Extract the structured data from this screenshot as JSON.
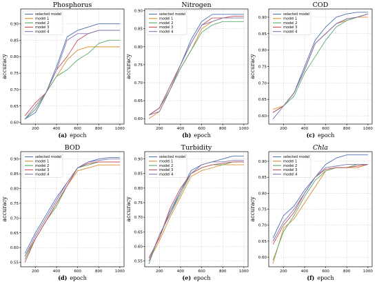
{
  "colors": {
    "selected model": "#4c72b0",
    "model 1": "#dd8a2b",
    "model 2": "#55a868",
    "model 3": "#c44e52",
    "model 4": "#8172b2"
  },
  "chart_data": [
    {
      "type": "line",
      "title": "Phosphorus",
      "title_italic": false,
      "caption_letter": "(a)",
      "xlabel": "epoch",
      "ylabel": "accuracy",
      "xlim": [
        60,
        1040
      ],
      "ylim": [
        0.595,
        0.945
      ],
      "xticks": [
        200,
        400,
        600,
        800,
        1000
      ],
      "yticks": [
        0.6,
        0.65,
        0.7,
        0.75,
        0.8,
        0.85,
        0.9
      ],
      "ytick_labels": [
        "0.60",
        "0.65",
        "0.70",
        "0.75",
        "0.80",
        "0.85",
        "0.90"
      ],
      "grid": true,
      "legend_position": "top-left",
      "x": [
        100,
        200,
        300,
        400,
        500,
        600,
        700,
        800,
        900,
        1000
      ],
      "series": [
        {
          "name": "selected model",
          "values": [
            0.61,
            0.63,
            0.69,
            0.77,
            0.86,
            0.88,
            0.89,
            0.9,
            0.9,
            0.9
          ]
        },
        {
          "name": "model 1",
          "values": [
            0.61,
            0.64,
            0.69,
            0.74,
            0.79,
            0.82,
            0.83,
            0.83,
            0.83,
            0.83
          ]
        },
        {
          "name": "model 2",
          "values": [
            0.61,
            0.64,
            0.69,
            0.74,
            0.76,
            0.79,
            0.81,
            0.84,
            0.85,
            0.85
          ]
        },
        {
          "name": "model 3",
          "values": [
            0.62,
            0.66,
            0.69,
            0.76,
            0.8,
            0.85,
            0.87,
            0.88,
            0.88,
            0.88
          ]
        },
        {
          "name": "model 4",
          "values": [
            0.61,
            0.65,
            0.69,
            0.76,
            0.85,
            0.87,
            0.87,
            0.88,
            0.88,
            0.88
          ]
        }
      ]
    },
    {
      "type": "line",
      "title": "Nitrogen",
      "title_italic": false,
      "caption_letter": "(b)",
      "xlabel": "epoch",
      "ylabel": "accuracy",
      "xlim": [
        60,
        1040
      ],
      "ylim": [
        0.585,
        0.905
      ],
      "xticks": [
        200,
        400,
        600,
        800,
        1000
      ],
      "yticks": [
        0.6,
        0.65,
        0.7,
        0.75,
        0.8,
        0.85,
        0.9
      ],
      "ytick_labels": [
        "0.60",
        "0.65",
        "0.70",
        "0.75",
        "0.80",
        "0.85",
        "0.90"
      ],
      "grid": true,
      "legend_position": "top-left",
      "x": [
        100,
        200,
        300,
        400,
        500,
        600,
        700,
        800,
        900,
        1000
      ],
      "series": [
        {
          "name": "selected model",
          "values": [
            0.61,
            0.63,
            0.69,
            0.75,
            0.82,
            0.87,
            0.89,
            0.89,
            0.89,
            0.89
          ]
        },
        {
          "name": "model 1",
          "values": [
            0.6,
            0.62,
            0.68,
            0.74,
            0.79,
            0.85,
            0.87,
            0.88,
            0.88,
            0.88
          ]
        },
        {
          "name": "model 2",
          "values": [
            0.61,
            0.63,
            0.68,
            0.74,
            0.79,
            0.84,
            0.86,
            0.87,
            0.87,
            0.87
          ]
        },
        {
          "name": "model 3",
          "values": [
            0.61,
            0.63,
            0.69,
            0.75,
            0.81,
            0.86,
            0.88,
            0.88,
            0.885,
            0.885
          ]
        },
        {
          "name": "model 4",
          "values": [
            0.61,
            0.62,
            0.68,
            0.75,
            0.81,
            0.86,
            0.87,
            0.88,
            0.88,
            0.88
          ]
        }
      ]
    },
    {
      "type": "line",
      "title": "COD",
      "title_italic": false,
      "caption_letter": "(c)",
      "xlabel": "epoch",
      "ylabel": "accuracy",
      "xlim": [
        60,
        1040
      ],
      "ylim": [
        0.575,
        0.925
      ],
      "xticks": [
        200,
        400,
        600,
        800,
        1000
      ],
      "yticks": [
        0.6,
        0.65,
        0.7,
        0.75,
        0.8,
        0.85,
        0.9
      ],
      "ytick_labels": [
        "0.60",
        "0.65",
        "0.70",
        "0.75",
        "0.80",
        "0.85",
        "0.90"
      ],
      "grid": true,
      "legend_position": "top-left",
      "x": [
        100,
        200,
        300,
        400,
        500,
        600,
        700,
        800,
        900,
        1000
      ],
      "series": [
        {
          "name": "selected model",
          "values": [
            0.61,
            0.63,
            0.67,
            0.75,
            0.83,
            0.87,
            0.9,
            0.91,
            0.915,
            0.915
          ]
        },
        {
          "name": "model 1",
          "values": [
            0.62,
            0.63,
            0.67,
            0.74,
            0.82,
            0.85,
            0.88,
            0.89,
            0.9,
            0.9
          ]
        },
        {
          "name": "model 2",
          "values": [
            0.61,
            0.63,
            0.66,
            0.73,
            0.78,
            0.83,
            0.87,
            0.89,
            0.9,
            0.91
          ]
        },
        {
          "name": "model 3",
          "values": [
            0.61,
            0.63,
            0.67,
            0.74,
            0.82,
            0.85,
            0.88,
            0.895,
            0.9,
            0.91
          ]
        },
        {
          "name": "model 4",
          "values": [
            0.59,
            0.63,
            0.67,
            0.74,
            0.82,
            0.85,
            0.88,
            0.895,
            0.9,
            0.91
          ]
        }
      ]
    },
    {
      "type": "line",
      "title": "BOD",
      "title_italic": false,
      "caption_letter": "(d)",
      "xlabel": "epoch",
      "ylabel": "accuracy",
      "xlim": [
        60,
        1040
      ],
      "ylim": [
        0.535,
        0.925
      ],
      "xticks": [
        200,
        400,
        600,
        800,
        1000
      ],
      "yticks": [
        0.55,
        0.6,
        0.65,
        0.7,
        0.75,
        0.8,
        0.85,
        0.9
      ],
      "ytick_labels": [
        "0.55",
        "0.60",
        "0.65",
        "0.70",
        "0.75",
        "0.80",
        "0.85",
        "0.90"
      ],
      "grid": true,
      "legend_position": "top-left",
      "x": [
        100,
        200,
        300,
        400,
        500,
        600,
        700,
        800,
        900,
        1000
      ],
      "series": [
        {
          "name": "selected model",
          "values": [
            0.58,
            0.65,
            0.71,
            0.77,
            0.82,
            0.87,
            0.89,
            0.9,
            0.905,
            0.905
          ]
        },
        {
          "name": "model 1",
          "values": [
            0.57,
            0.63,
            0.69,
            0.75,
            0.81,
            0.86,
            0.87,
            0.88,
            0.88,
            0.88
          ]
        },
        {
          "name": "model 2",
          "values": [
            0.56,
            0.63,
            0.69,
            0.74,
            0.81,
            0.87,
            0.88,
            0.89,
            0.89,
            0.89
          ]
        },
        {
          "name": "model 3",
          "values": [
            0.55,
            0.63,
            0.69,
            0.75,
            0.81,
            0.87,
            0.885,
            0.89,
            0.89,
            0.89
          ]
        },
        {
          "name": "model 4",
          "values": [
            0.57,
            0.64,
            0.7,
            0.76,
            0.82,
            0.87,
            0.89,
            0.895,
            0.9,
            0.9
          ]
        }
      ]
    },
    {
      "type": "line",
      "title": "Turbidity",
      "title_italic": false,
      "caption_letter": "(e)",
      "xlabel": "epoch",
      "ylabel": "accuracy",
      "xlim": [
        60,
        1040
      ],
      "ylim": [
        0.53,
        0.925
      ],
      "xticks": [
        200,
        400,
        600,
        800,
        1000
      ],
      "yticks": [
        0.55,
        0.6,
        0.65,
        0.7,
        0.75,
        0.8,
        0.85,
        0.9
      ],
      "ytick_labels": [
        "0.55",
        "0.60",
        "0.65",
        "0.70",
        "0.75",
        "0.80",
        "0.85",
        "0.90"
      ],
      "grid": true,
      "legend_position": "top-left",
      "x": [
        100,
        200,
        300,
        400,
        500,
        600,
        700,
        800,
        900,
        1000
      ],
      "series": [
        {
          "name": "selected model",
          "values": [
            0.56,
            0.63,
            0.72,
            0.79,
            0.86,
            0.88,
            0.89,
            0.9,
            0.91,
            0.91
          ]
        },
        {
          "name": "model 1",
          "values": [
            0.55,
            0.62,
            0.7,
            0.77,
            0.84,
            0.86,
            0.87,
            0.88,
            0.88,
            0.88
          ]
        },
        {
          "name": "model 2",
          "values": [
            0.54,
            0.64,
            0.71,
            0.78,
            0.85,
            0.87,
            0.88,
            0.88,
            0.89,
            0.89
          ]
        },
        {
          "name": "model 3",
          "values": [
            0.56,
            0.63,
            0.73,
            0.8,
            0.85,
            0.87,
            0.88,
            0.885,
            0.89,
            0.89
          ]
        },
        {
          "name": "model 4",
          "values": [
            0.55,
            0.64,
            0.71,
            0.79,
            0.85,
            0.88,
            0.89,
            0.89,
            0.895,
            0.895
          ]
        }
      ]
    },
    {
      "type": "line",
      "title": "Chla",
      "title_italic": true,
      "caption_letter": "(f)",
      "xlabel": "epoch",
      "ylabel": "accuracy",
      "xlim": [
        60,
        1040
      ],
      "ylim": [
        0.57,
        0.93
      ],
      "xticks": [
        200,
        400,
        600,
        800,
        1000
      ],
      "yticks": [
        0.6,
        0.65,
        0.7,
        0.75,
        0.8,
        0.85,
        0.9
      ],
      "ytick_labels": [
        "0.60",
        "0.65",
        "0.70",
        "0.75",
        "0.80",
        "0.85",
        "0.90"
      ],
      "grid": true,
      "legend_position": "top-left",
      "x": [
        100,
        200,
        300,
        400,
        500,
        600,
        700,
        800,
        900,
        1000
      ],
      "series": [
        {
          "name": "selected model",
          "values": [
            0.66,
            0.73,
            0.76,
            0.81,
            0.85,
            0.89,
            0.91,
            0.92,
            0.92,
            0.92
          ]
        },
        {
          "name": "model 1",
          "values": [
            0.58,
            0.69,
            0.72,
            0.77,
            0.82,
            0.87,
            0.88,
            0.88,
            0.88,
            0.89
          ]
        },
        {
          "name": "model 2",
          "values": [
            0.59,
            0.68,
            0.73,
            0.79,
            0.84,
            0.87,
            0.88,
            0.88,
            0.89,
            0.89
          ]
        },
        {
          "name": "model 3",
          "values": [
            0.64,
            0.7,
            0.74,
            0.8,
            0.85,
            0.875,
            0.88,
            0.88,
            0.885,
            0.89
          ]
        },
        {
          "name": "model 4",
          "values": [
            0.65,
            0.71,
            0.75,
            0.8,
            0.85,
            0.88,
            0.885,
            0.89,
            0.89,
            0.89
          ]
        }
      ]
    }
  ]
}
